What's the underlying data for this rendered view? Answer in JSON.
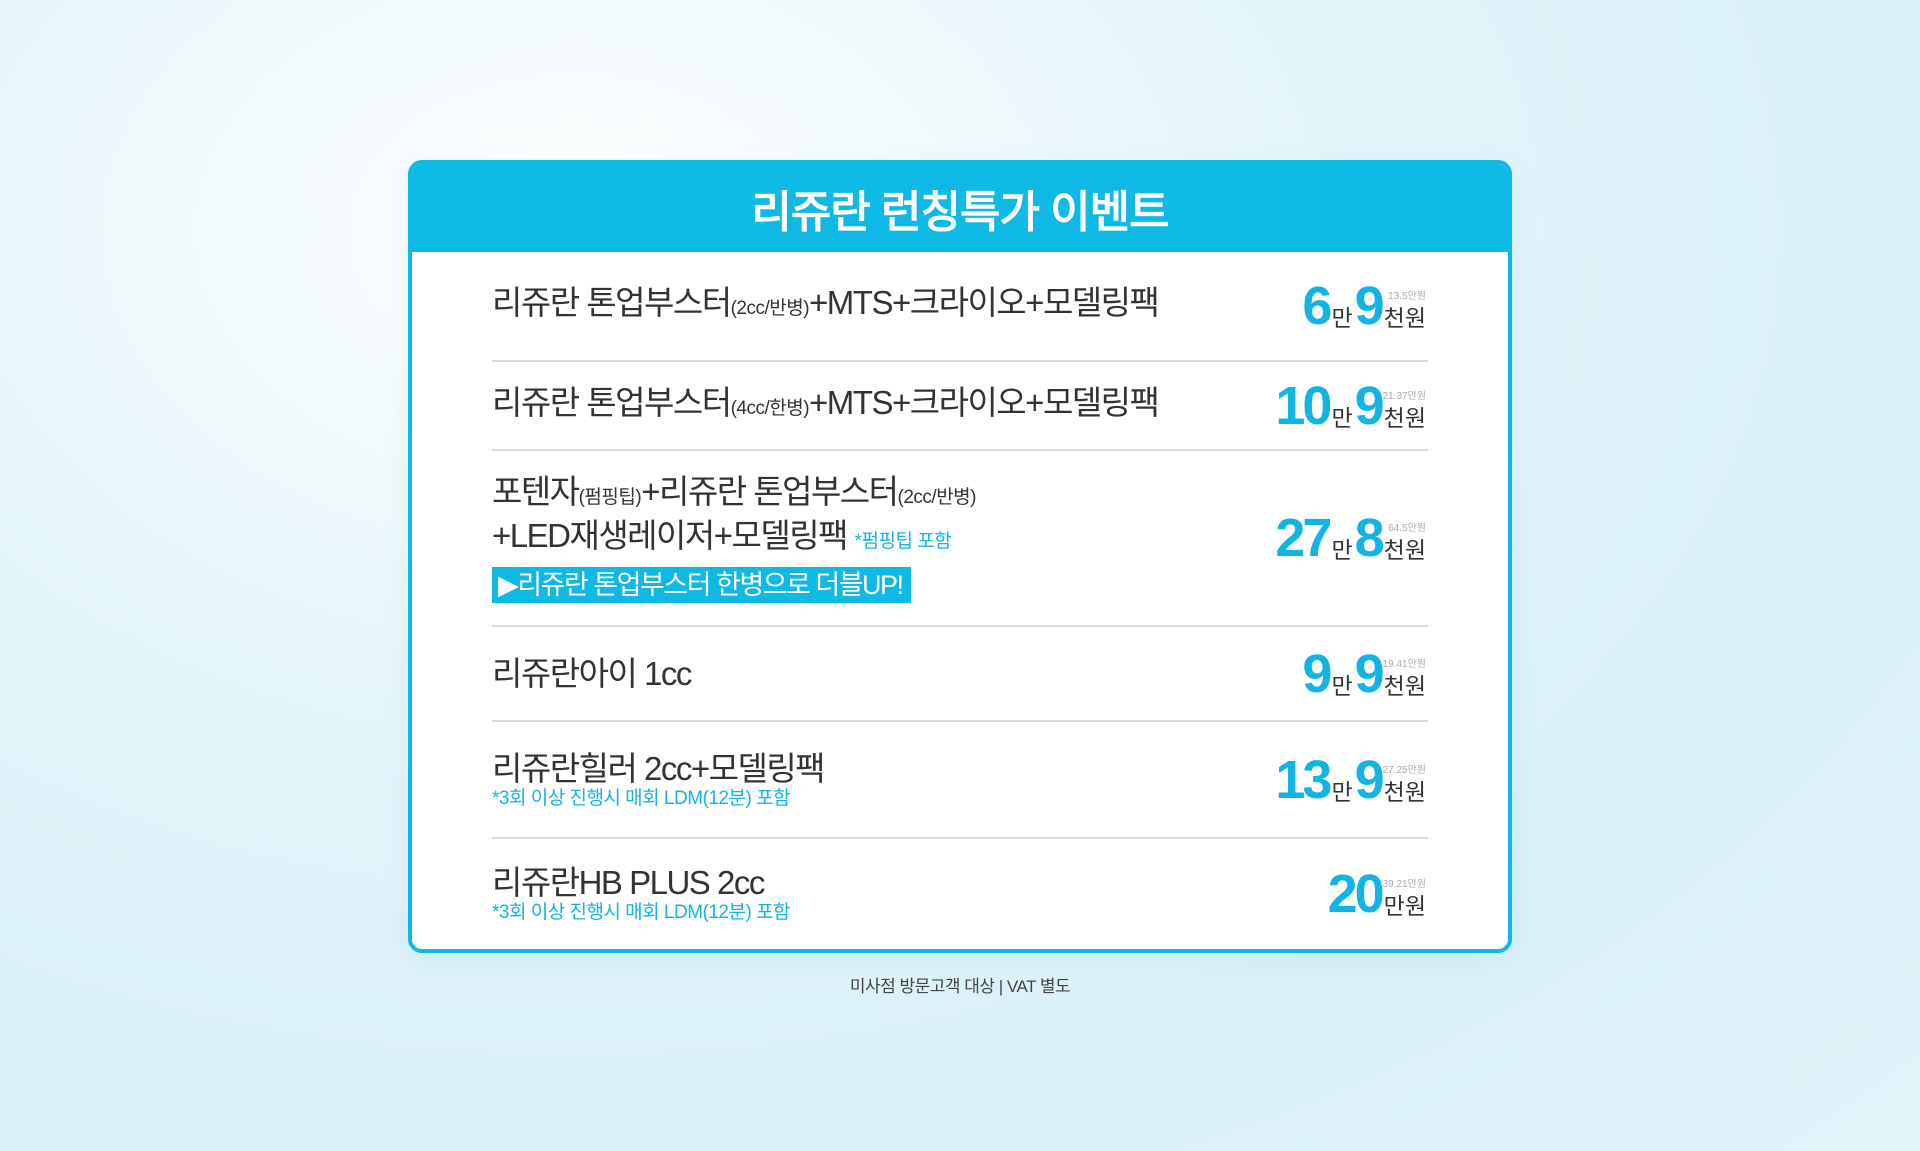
{
  "title": "리쥬란 런칭특가 이벤트",
  "items": [
    {
      "name_a": "리쥬란 톤업부스터",
      "name_small": "(2cc/반병)",
      "name_b": "+MTS+크라이오+모델링팩",
      "price_a": "6",
      "unit_a": "만",
      "price_b": "9",
      "unit_b": "천원",
      "orig": "13.5만원"
    },
    {
      "name_a": "리쥬란 톤업부스터",
      "name_small": "(4cc/한병)",
      "name_b": "+MTS+크라이오+모델링팩",
      "price_a": "10",
      "unit_a": "만",
      "price_b": "9",
      "unit_b": "천원",
      "orig": "21.37만원"
    },
    {
      "line1_a": "포텐자",
      "line1_small_a": "(펌핑팁)",
      "line1_b": "+리쥬란 톤업부스터",
      "line1_small_b": "(2cc/반병)",
      "line2": "+LED재생레이저+모델링팩",
      "note": "*펌핑팁 포함",
      "highlight": "▶리쥬란 톤업부스터 한병으로 더블UP!",
      "price_a": "27",
      "unit_a": "만",
      "price_b": "8",
      "unit_b": "천원",
      "orig": "64.5만원"
    },
    {
      "name": "리쥬란아이 1cc",
      "price_a": "9",
      "unit_a": "만",
      "price_b": "9",
      "unit_b": "천원",
      "orig": "19.41만원"
    },
    {
      "name": "리쥬란힐러 2cc+모델링팩",
      "sub": "*3회 이상 진행시 매회 LDM(12분) 포함",
      "price_a": "13",
      "unit_a": "만",
      "price_b": "9",
      "unit_b": "천원",
      "orig": "27.25만원"
    },
    {
      "name": "리쥬란HB PLUS 2cc",
      "sub": "*3회 이상 진행시 매회 LDM(12분) 포함",
      "price_a": "20",
      "unit_a": "만원",
      "orig": "39.21만원"
    }
  ],
  "footer": "미사점 방문고객 대상 | VAT 별도"
}
